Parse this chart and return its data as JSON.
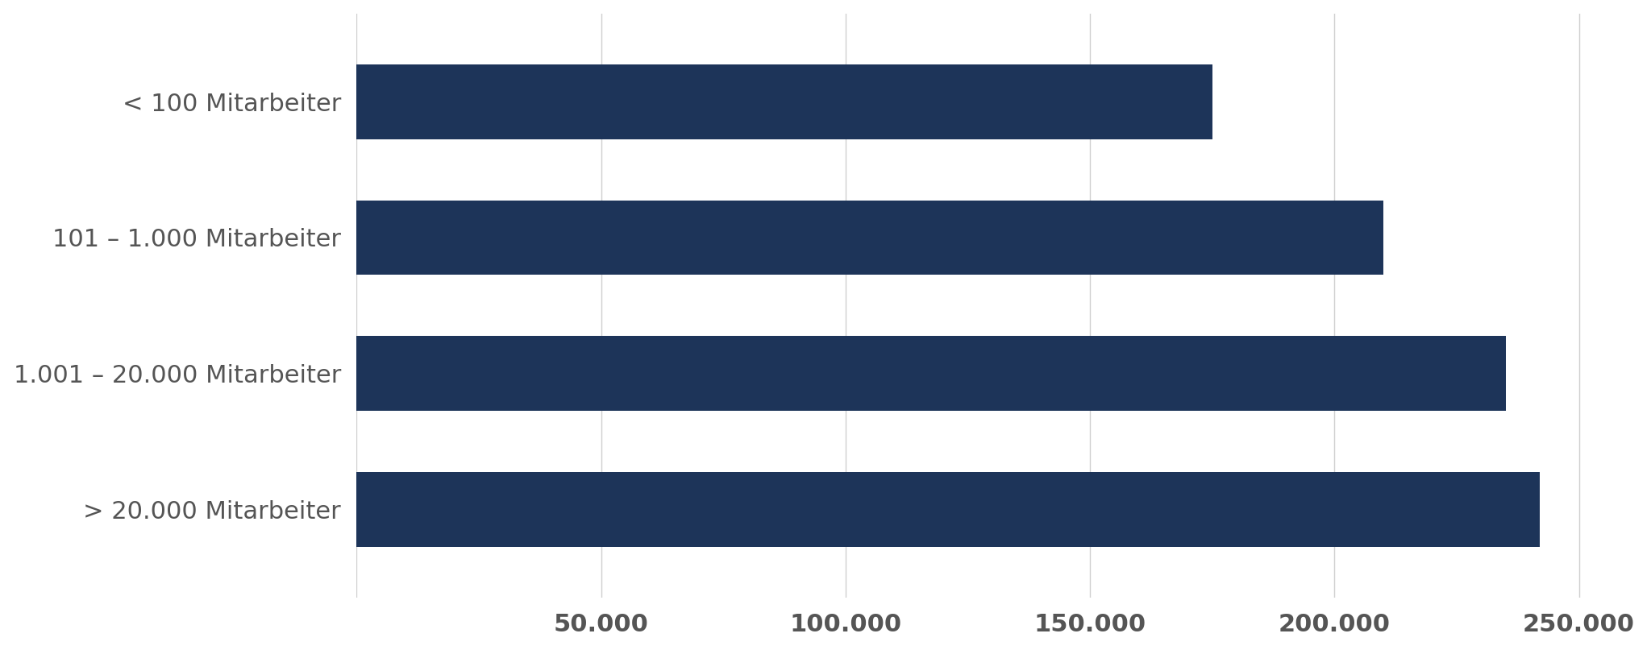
{
  "categories": [
    "> 20.000 Mitarbeiter",
    "1.001 – 20.000 Mitarbeiter",
    "101 – 1.000 Mitarbeiter",
    "< 100 Mitarbeiter"
  ],
  "values": [
    242000,
    235000,
    210000,
    175000
  ],
  "bar_color": "#1d3459",
  "background_color": "#ffffff",
  "bar_height": 0.55,
  "xlim": [
    0,
    262000
  ],
  "xticks": [
    0,
    50000,
    100000,
    150000,
    200000,
    250000
  ],
  "xtick_labels": [
    "",
    "50.000",
    "100.000",
    "150.000",
    "200.000",
    "250.000"
  ],
  "grid_color": "#d0d0d0",
  "label_color": "#555555",
  "label_fontsize": 22,
  "tick_fontsize": 22,
  "tick_fontweight": "bold"
}
